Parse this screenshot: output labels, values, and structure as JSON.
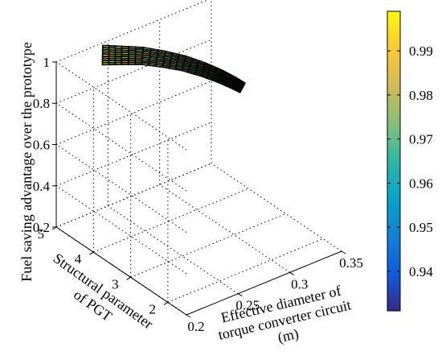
{
  "chart_data": {
    "type": "surface3d",
    "xlabel": [
      "Effective diameter of",
      "torque converter circuit",
      "(m)"
    ],
    "ylabel": [
      "Structural parameter",
      "of PGT"
    ],
    "zlabel": "Fuel saving advantage over the prototype",
    "x_ticks": [
      "0.2",
      "0.25",
      "0.3",
      "0.35"
    ],
    "y_ticks": [
      "2",
      "3",
      "4",
      "5"
    ],
    "z_ticks": [
      "0.2",
      "0.4",
      "0.6",
      "0.8",
      "1"
    ],
    "xlim": [
      0.2,
      0.35
    ],
    "ylim": [
      1.5,
      5
    ],
    "zlim": [
      0.2,
      1
    ],
    "colorbar": {
      "ticks": [
        "0.94",
        "0.95",
        "0.96",
        "0.97",
        "0.98",
        "0.99"
      ],
      "range": [
        0.931,
        0.999
      ],
      "colormap": "parula"
    },
    "surface_center": [
      {
        "x": 0.234,
        "y": 4.7,
        "z": 1.0
      },
      {
        "x": 0.247,
        "y": 4.55,
        "z": 0.99
      },
      {
        "x": 0.26,
        "y": 4.35,
        "z": 0.985
      },
      {
        "x": 0.272,
        "y": 4.1,
        "z": 0.975
      },
      {
        "x": 0.282,
        "y": 3.85,
        "z": 0.965
      },
      {
        "x": 0.29,
        "y": 3.55,
        "z": 0.955
      },
      {
        "x": 0.296,
        "y": 3.25,
        "z": 0.945
      },
      {
        "x": 0.299,
        "y": 3.0,
        "z": 0.94
      },
      {
        "x": 0.301,
        "y": 2.8,
        "z": 0.935
      }
    ],
    "grid": true
  }
}
